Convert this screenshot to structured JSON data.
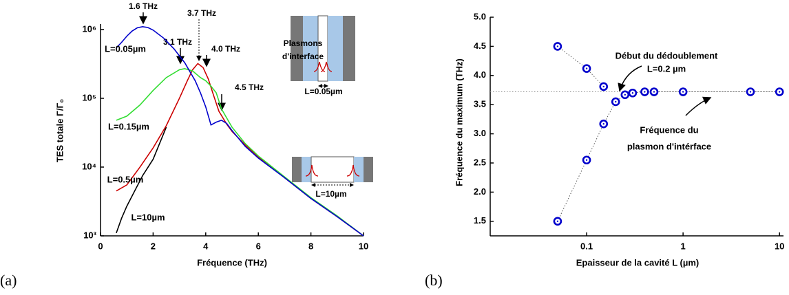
{
  "chart_data": [
    {
      "type": "line",
      "panel": "(a)",
      "xlabel": "Fréquence (THz)",
      "ylabel": "TES totale Γ/Γ₀",
      "xlim": [
        0,
        10
      ],
      "xticks": [
        0,
        2,
        4,
        6,
        8,
        10
      ],
      "ylim": [
        1000,
        1200000
      ],
      "y_scale": "log",
      "yticks": [
        {
          "value": 1000,
          "label": "10³"
        },
        {
          "value": 10000,
          "label": "10⁴"
        },
        {
          "value": 100000,
          "label": "10⁵"
        },
        {
          "value": 1000000,
          "label": "10⁶"
        }
      ],
      "series": [
        {
          "name": "L=0.05µm",
          "color": "#0000cc",
          "x": [
            0.6,
            0.8,
            1.0,
            1.2,
            1.4,
            1.6,
            1.8,
            2.0,
            2.4,
            2.8,
            3.2,
            3.6,
            3.8,
            4.0,
            4.2,
            4.4,
            4.6,
            4.8,
            5.0,
            5.5,
            6,
            7,
            8,
            9,
            10
          ],
          "values": [
            540000,
            650000,
            800000,
            950000,
            1060000,
            1100000,
            1070000,
            980000,
            750000,
            520000,
            330000,
            180000,
            120000,
            75000,
            41000,
            45000,
            48000,
            43000,
            34000,
            20000,
            13500,
            7000,
            3500,
            1900,
            1000
          ]
        },
        {
          "name": "L=0.15µm",
          "color": "#33dd33",
          "x": [
            0.6,
            1.0,
            1.5,
            2.0,
            2.5,
            3.0,
            3.2,
            3.5,
            3.8,
            4.0,
            4.2,
            4.4,
            4.6,
            5.0,
            5.5,
            6,
            7,
            8,
            9,
            10
          ],
          "values": [
            48000,
            55000,
            80000,
            130000,
            200000,
            260000,
            270000,
            250000,
            200000,
            180000,
            150000,
            120000,
            70000,
            38000,
            22000,
            14500,
            7200,
            3600,
            1950,
            1000
          ]
        },
        {
          "name": "L=0.5µm",
          "color": "#cc0000",
          "x": [
            0.6,
            1.0,
            1.5,
            2.0,
            2.5,
            3.0,
            3.3,
            3.5,
            3.7,
            3.9,
            4.1,
            4.3,
            4.5,
            4.8,
            5.0,
            5.5,
            6,
            7,
            8,
            9,
            10
          ],
          "values": [
            4500,
            5500,
            10000,
            19000,
            40000,
            100000,
            180000,
            260000,
            320000,
            280000,
            190000,
            110000,
            65000,
            42000,
            33000,
            21000,
            14000,
            7000,
            3500,
            1900,
            1000
          ]
        },
        {
          "name": "L=10µm",
          "color": "#000000",
          "x": [
            0.6,
            0.8,
            1.0,
            1.3,
            1.6,
            2.0,
            2.5
          ],
          "values": [
            1100,
            1800,
            2700,
            4500,
            7500,
            13000,
            38000
          ]
        }
      ],
      "annotations": [
        "1.6 THz",
        "3.1 THz",
        "3.7 THz",
        "4.0 THz",
        "4.5 THz",
        "Plasmons",
        "d'interface",
        "L=0.05µm",
        "L=10µm"
      ]
    },
    {
      "type": "scatter",
      "panel": "(b)",
      "xlabel": "Epaisseur de la cavité L (µm)",
      "ylabel": "Fréquence du maximum (THz)",
      "xlim": [
        0.01,
        11
      ],
      "x_scale": "log",
      "xticks": [
        0.1,
        1,
        10
      ],
      "ylim": [
        1.25,
        5.0
      ],
      "yticks": [
        {
          "value": 1.5,
          "label": "1.5"
        },
        {
          "value": 2,
          "label": "2.0"
        },
        {
          "value": 2.5,
          "label": "2.5"
        },
        {
          "value": 3,
          "label": "3.0"
        },
        {
          "value": 3.5,
          "label": "3.5"
        },
        {
          "value": 4,
          "label": "4.0"
        },
        {
          "value": 4.5,
          "label": "4.5"
        },
        {
          "value": 5,
          "label": "5.0"
        }
      ],
      "reference_line": 3.72,
      "series": [
        {
          "color": "#0000cc",
          "x": [
            0.05,
            0.1,
            0.15,
            0.2,
            0.25,
            0.3,
            0.4,
            0.5,
            1,
            5,
            10
          ],
          "values": [
            1.5,
            2.55,
            3.17,
            3.55,
            3.67,
            3.7,
            3.72,
            3.72,
            3.72,
            3.72,
            3.72
          ]
        },
        {
          "color": "#0000cc",
          "x": [
            0.05,
            0.1,
            0.15
          ],
          "values": [
            4.5,
            4.12,
            3.81
          ]
        }
      ],
      "annotations": [
        "Début du dédoublement",
        "L=0.2 µm",
        "Fréquence du",
        "plasmon d'intérface"
      ]
    }
  ]
}
